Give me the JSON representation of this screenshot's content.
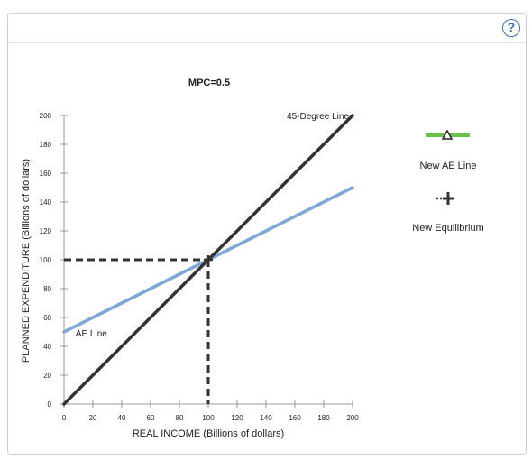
{
  "help": {
    "label": "?"
  },
  "chart_data": {
    "type": "line",
    "title": "MPC=0.5",
    "xlabel": "REAL INCOME (Billions of dollars)",
    "ylabel": "PLANNED EXPENDITURE (Billions of dollars)",
    "xlim": [
      0,
      200
    ],
    "ylim": [
      0,
      200
    ],
    "x_ticks": [
      "0",
      "20",
      "40",
      "60",
      "80",
      "100",
      "120",
      "140",
      "160",
      "180",
      "200"
    ],
    "y_ticks": [
      "0",
      "20",
      "40",
      "60",
      "80",
      "100",
      "120",
      "140",
      "160",
      "180",
      "200"
    ],
    "grid": false,
    "series": [
      {
        "name": "45-Degree Line",
        "x": [
          0,
          200
        ],
        "y": [
          0,
          200
        ],
        "color": "#333333"
      },
      {
        "name": "AE Line",
        "x": [
          0,
          200
        ],
        "y": [
          50,
          150
        ],
        "color": "#7ea6d6"
      }
    ],
    "equilibrium": {
      "x": 100,
      "y": 100
    }
  },
  "legend": {
    "new_ae_line_label": "New AE Line",
    "new_equilibrium_label": "New Equilibrium",
    "ae_color": "#6cc04a"
  }
}
